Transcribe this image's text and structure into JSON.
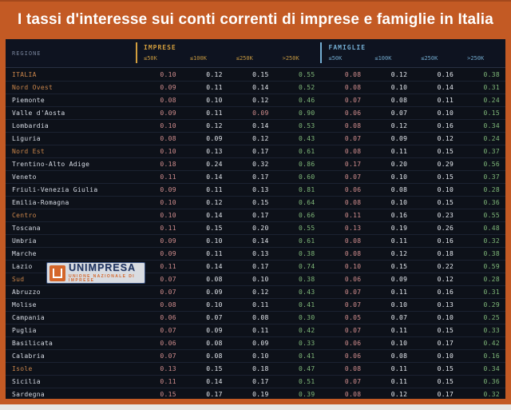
{
  "title": "I tassi d'interesse sui conti correnti di imprese e famiglie in Italia",
  "colors": {
    "frame_orange": "#c35a24",
    "panel_background": "#0d1119",
    "imprese_accent": "#d29e3e",
    "famiglie_accent": "#74aed3",
    "macro_region_text": "#c9854a",
    "region_text": "#d8dde6",
    "value_lowest": "#d08d8d",
    "value_middle": "#e3e7ed",
    "value_highest": "#7fb879"
  },
  "watermark": {
    "brand": "UNIMPRESA",
    "tagline": "UNIONE NAZIONALE DI IMPRESE"
  },
  "chart_data": {
    "type": "table",
    "title": "I tassi d'interesse sui conti correnti di imprese e famiglie in Italia",
    "region_column_header": "REGIONE",
    "groups": [
      {
        "label": "IMPRESE",
        "columns": [
          "≤50K",
          "≤100K",
          "≤250K",
          ">250K"
        ]
      },
      {
        "label": "FAMIGLIE",
        "columns": [
          "≤50K",
          "≤100K",
          "≤250K",
          ">250K"
        ]
      }
    ],
    "color_coding": "per row and group: lowest value salmon, highest value green, others white",
    "rows": [
      {
        "region": "ITALIA",
        "macro": true,
        "imprese": [
          "0.10",
          "0.12",
          "0.15",
          "0.55"
        ],
        "famiglie": [
          "0.08",
          "0.12",
          "0.16",
          "0.38"
        ]
      },
      {
        "region": "Nord Ovest",
        "macro": true,
        "imprese": [
          "0.09",
          "0.11",
          "0.14",
          "0.52"
        ],
        "famiglie": [
          "0.08",
          "0.10",
          "0.14",
          "0.31"
        ]
      },
      {
        "region": "Piemonte",
        "macro": false,
        "imprese": [
          "0.08",
          "0.10",
          "0.12",
          "0.46"
        ],
        "famiglie": [
          "0.07",
          "0.08",
          "0.11",
          "0.24"
        ]
      },
      {
        "region": "Valle d'Aosta",
        "macro": false,
        "imprese": [
          "0.09",
          "0.11",
          "0.09",
          "0.90"
        ],
        "famiglie": [
          "0.06",
          "0.07",
          "0.10",
          "0.15"
        ]
      },
      {
        "region": "Lombardia",
        "macro": false,
        "imprese": [
          "0.10",
          "0.12",
          "0.14",
          "0.53"
        ],
        "famiglie": [
          "0.08",
          "0.12",
          "0.16",
          "0.34"
        ]
      },
      {
        "region": "Liguria",
        "macro": false,
        "imprese": [
          "0.08",
          "0.09",
          "0.12",
          "0.43"
        ],
        "famiglie": [
          "0.07",
          "0.09",
          "0.12",
          "0.24"
        ]
      },
      {
        "region": "Nord Est",
        "macro": true,
        "imprese": [
          "0.10",
          "0.13",
          "0.17",
          "0.61"
        ],
        "famiglie": [
          "0.08",
          "0.11",
          "0.15",
          "0.37"
        ]
      },
      {
        "region": "Trentino-Alto Adige",
        "macro": false,
        "imprese": [
          "0.18",
          "0.24",
          "0.32",
          "0.86"
        ],
        "famiglie": [
          "0.17",
          "0.20",
          "0.29",
          "0.56"
        ]
      },
      {
        "region": "Veneto",
        "macro": false,
        "imprese": [
          "0.11",
          "0.14",
          "0.17",
          "0.60"
        ],
        "famiglie": [
          "0.07",
          "0.10",
          "0.15",
          "0.37"
        ]
      },
      {
        "region": "Friuli-Venezia Giulia",
        "macro": false,
        "imprese": [
          "0.09",
          "0.11",
          "0.13",
          "0.81"
        ],
        "famiglie": [
          "0.06",
          "0.08",
          "0.10",
          "0.28"
        ]
      },
      {
        "region": "Emilia-Romagna",
        "macro": false,
        "imprese": [
          "0.10",
          "0.12",
          "0.15",
          "0.64"
        ],
        "famiglie": [
          "0.08",
          "0.10",
          "0.15",
          "0.36"
        ]
      },
      {
        "region": "Centro",
        "macro": true,
        "imprese": [
          "0.10",
          "0.14",
          "0.17",
          "0.66"
        ],
        "famiglie": [
          "0.11",
          "0.16",
          "0.23",
          "0.55"
        ]
      },
      {
        "region": "Toscana",
        "macro": false,
        "imprese": [
          "0.11",
          "0.15",
          "0.20",
          "0.55"
        ],
        "famiglie": [
          "0.13",
          "0.19",
          "0.26",
          "0.48"
        ]
      },
      {
        "region": "Umbria",
        "macro": false,
        "imprese": [
          "0.09",
          "0.10",
          "0.14",
          "0.61"
        ],
        "famiglie": [
          "0.08",
          "0.11",
          "0.16",
          "0.32"
        ]
      },
      {
        "region": "Marche",
        "macro": false,
        "imprese": [
          "0.09",
          "0.11",
          "0.13",
          "0.38"
        ],
        "famiglie": [
          "0.08",
          "0.12",
          "0.18",
          "0.38"
        ]
      },
      {
        "region": "Lazio",
        "macro": false,
        "imprese": [
          "0.11",
          "0.14",
          "0.17",
          "0.74"
        ],
        "famiglie": [
          "0.10",
          "0.15",
          "0.22",
          "0.59"
        ]
      },
      {
        "region": "Sud",
        "macro": true,
        "imprese": [
          "0.07",
          "0.08",
          "0.10",
          "0.38"
        ],
        "famiglie": [
          "0.06",
          "0.09",
          "0.12",
          "0.28"
        ]
      },
      {
        "region": "Abruzzo",
        "macro": false,
        "imprese": [
          "0.07",
          "0.09",
          "0.12",
          "0.43"
        ],
        "famiglie": [
          "0.07",
          "0.11",
          "0.16",
          "0.31"
        ]
      },
      {
        "region": "Molise",
        "macro": false,
        "imprese": [
          "0.08",
          "0.10",
          "0.11",
          "0.41"
        ],
        "famiglie": [
          "0.07",
          "0.10",
          "0.13",
          "0.29"
        ]
      },
      {
        "region": "Campania",
        "macro": false,
        "imprese": [
          "0.06",
          "0.07",
          "0.08",
          "0.30"
        ],
        "famiglie": [
          "0.05",
          "0.07",
          "0.10",
          "0.25"
        ]
      },
      {
        "region": "Puglia",
        "macro": false,
        "imprese": [
          "0.07",
          "0.09",
          "0.11",
          "0.42"
        ],
        "famiglie": [
          "0.07",
          "0.11",
          "0.15",
          "0.33"
        ]
      },
      {
        "region": "Basilicata",
        "macro": false,
        "imprese": [
          "0.06",
          "0.08",
          "0.09",
          "0.33"
        ],
        "famiglie": [
          "0.06",
          "0.10",
          "0.17",
          "0.42"
        ]
      },
      {
        "region": "Calabria",
        "macro": false,
        "imprese": [
          "0.07",
          "0.08",
          "0.10",
          "0.41"
        ],
        "famiglie": [
          "0.06",
          "0.08",
          "0.10",
          "0.16"
        ]
      },
      {
        "region": "Isole",
        "macro": true,
        "imprese": [
          "0.13",
          "0.15",
          "0.18",
          "0.47"
        ],
        "famiglie": [
          "0.08",
          "0.11",
          "0.15",
          "0.34"
        ]
      },
      {
        "region": "Sicilia",
        "macro": false,
        "imprese": [
          "0.11",
          "0.14",
          "0.17",
          "0.51"
        ],
        "famiglie": [
          "0.07",
          "0.11",
          "0.15",
          "0.36"
        ]
      },
      {
        "region": "Sardegna",
        "macro": false,
        "imprese": [
          "0.15",
          "0.17",
          "0.19",
          "0.39"
        ],
        "famiglie": [
          "0.08",
          "0.12",
          "0.17",
          "0.32"
        ]
      }
    ]
  }
}
